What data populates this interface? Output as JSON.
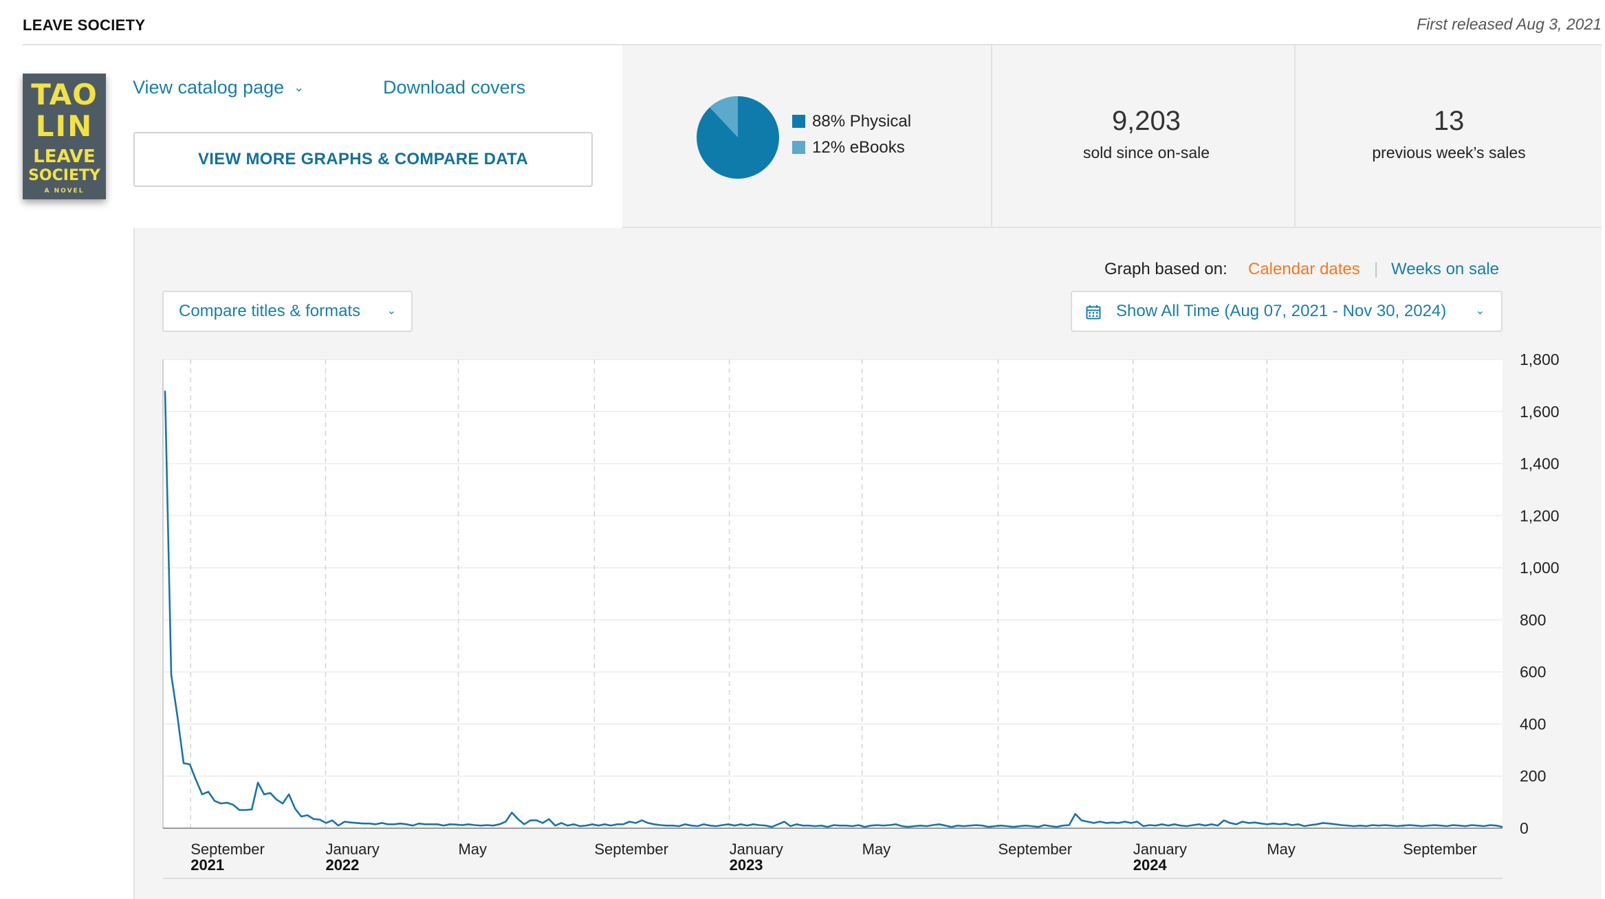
{
  "header": {
    "book_title": "LEAVE SOCIETY",
    "release_text": "First released Aug 3, 2021"
  },
  "cover": {
    "line1": "TAO",
    "line2": "LIN",
    "line3": "LEAVE",
    "line4": "SOCIETY",
    "line5": "A NOVEL"
  },
  "actions": {
    "view_catalog": "View catalog page",
    "download_covers": "Download covers",
    "view_more": "VIEW MORE GRAPHS & COMPARE DATA"
  },
  "format_split": {
    "slices": [
      {
        "label": "88% Physical",
        "percent": 88,
        "color": "#0e7bab"
      },
      {
        "label": "12% eBooks",
        "percent": 12,
        "color": "#5ba9cb"
      }
    ]
  },
  "stats": {
    "sold_value": "9,203",
    "sold_label": "sold since on-sale",
    "week_value": "13",
    "week_label": "previous week’s sales"
  },
  "graph_basis": {
    "label": "Graph based on:",
    "option_calendar": "Calendar dates",
    "separator": "|",
    "option_weeks": "Weeks on sale"
  },
  "controls": {
    "compare": "Compare titles & formats",
    "date_range": "Show All Time (Aug 07, 2021 - Nov 30, 2024)"
  },
  "colors": {
    "line": "#1a73a8",
    "accent_orange": "#f47920",
    "link_blue": "#1a7ea6"
  },
  "chart_data": {
    "type": "line",
    "x_start": "2021-08-07",
    "x_end": "2024-11-30",
    "x_interval": "weekly",
    "ylim": [
      0,
      1800
    ],
    "y_ticks": [
      "1,800",
      "1,600",
      "1,400",
      "1,200",
      "1,000",
      "800",
      "600",
      "400",
      "200",
      "0"
    ],
    "x_ticks": [
      {
        "month": "September",
        "year": "2021"
      },
      {
        "month": "January",
        "year": "2022"
      },
      {
        "month": "May",
        "year": ""
      },
      {
        "month": "September",
        "year": ""
      },
      {
        "month": "January",
        "year": "2023"
      },
      {
        "month": "May",
        "year": ""
      },
      {
        "month": "September",
        "year": ""
      },
      {
        "month": "January",
        "year": "2024"
      },
      {
        "month": "May",
        "year": ""
      },
      {
        "month": "September",
        "year": ""
      }
    ],
    "grid": true,
    "series": [
      {
        "values": [
          1680,
          590,
          430,
          250,
          245,
          185,
          130,
          140,
          105,
          95,
          98,
          90,
          70,
          70,
          72,
          175,
          130,
          135,
          110,
          95,
          130,
          75,
          45,
          50,
          35,
          33,
          20,
          30,
          10,
          25,
          22,
          20,
          18,
          18,
          15,
          20,
          15,
          15,
          18,
          15,
          10,
          18,
          15,
          15,
          15,
          10,
          15,
          14,
          12,
          15,
          12,
          10,
          12,
          10,
          15,
          25,
          60,
          35,
          15,
          30,
          30,
          20,
          35,
          10,
          20,
          10,
          15,
          8,
          10,
          15,
          10,
          15,
          10,
          15,
          15,
          25,
          20,
          30,
          20,
          15,
          12,
          10,
          10,
          8,
          15,
          10,
          8,
          15,
          10,
          8,
          12,
          15,
          10,
          15,
          10,
          15,
          12,
          10,
          5,
          15,
          25,
          8,
          15,
          10,
          10,
          8,
          10,
          5,
          12,
          10,
          10,
          8,
          12,
          5,
          10,
          12,
          10,
          12,
          15,
          8,
          5,
          8,
          10,
          8,
          12,
          15,
          10,
          5,
          10,
          8,
          10,
          12,
          10,
          5,
          8,
          10,
          8,
          5,
          8,
          10,
          8,
          5,
          12,
          8,
          5,
          10,
          12,
          55,
          30,
          25,
          20,
          25,
          20,
          22,
          20,
          25,
          20,
          25,
          8,
          12,
          10,
          15,
          10,
          15,
          10,
          8,
          12,
          15,
          10,
          15,
          10,
          30,
          20,
          15,
          25,
          20,
          22,
          18,
          15,
          18,
          15,
          18,
          12,
          15,
          8,
          12,
          15,
          20,
          18,
          15,
          12,
          10,
          8,
          10,
          8,
          12,
          10,
          12,
          10,
          8,
          10,
          12,
          10,
          8,
          10,
          12,
          10,
          8,
          12,
          10,
          8,
          12,
          10,
          8,
          12,
          10,
          5
        ]
      }
    ]
  }
}
